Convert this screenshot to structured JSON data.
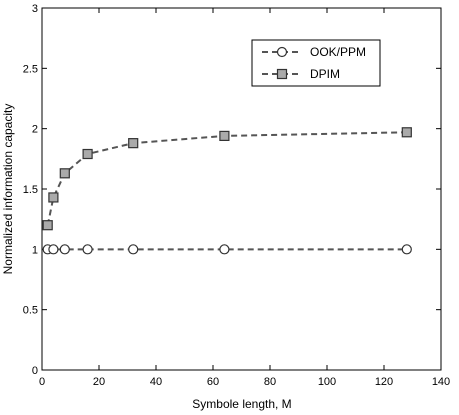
{
  "chart_data": {
    "type": "line",
    "xlabel": "Symbole length, M",
    "ylabel": "Normalized information capacity",
    "xlim": [
      0,
      140
    ],
    "ylim": [
      0,
      3
    ],
    "xticks": [
      0,
      20,
      40,
      60,
      80,
      100,
      120,
      140
    ],
    "yticks": [
      0,
      0.5,
      1,
      1.5,
      2,
      2.5,
      3
    ],
    "grid": false,
    "legend_position": "top-right",
    "series": [
      {
        "name": "DPIM",
        "marker": "square",
        "color": "#555555",
        "marker_fill": "#aaaaaa",
        "x": [
          2,
          4,
          8,
          16,
          32,
          64,
          128
        ],
        "y": [
          1.2,
          1.43,
          1.63,
          1.79,
          1.88,
          1.94,
          1.97
        ]
      },
      {
        "name": "OOK/PPM",
        "marker": "circle",
        "color": "#555555",
        "marker_fill": "#ffffff",
        "x": [
          2,
          4,
          8,
          16,
          32,
          64,
          128
        ],
        "y": [
          1,
          1,
          1,
          1,
          1,
          1,
          1
        ]
      }
    ]
  }
}
